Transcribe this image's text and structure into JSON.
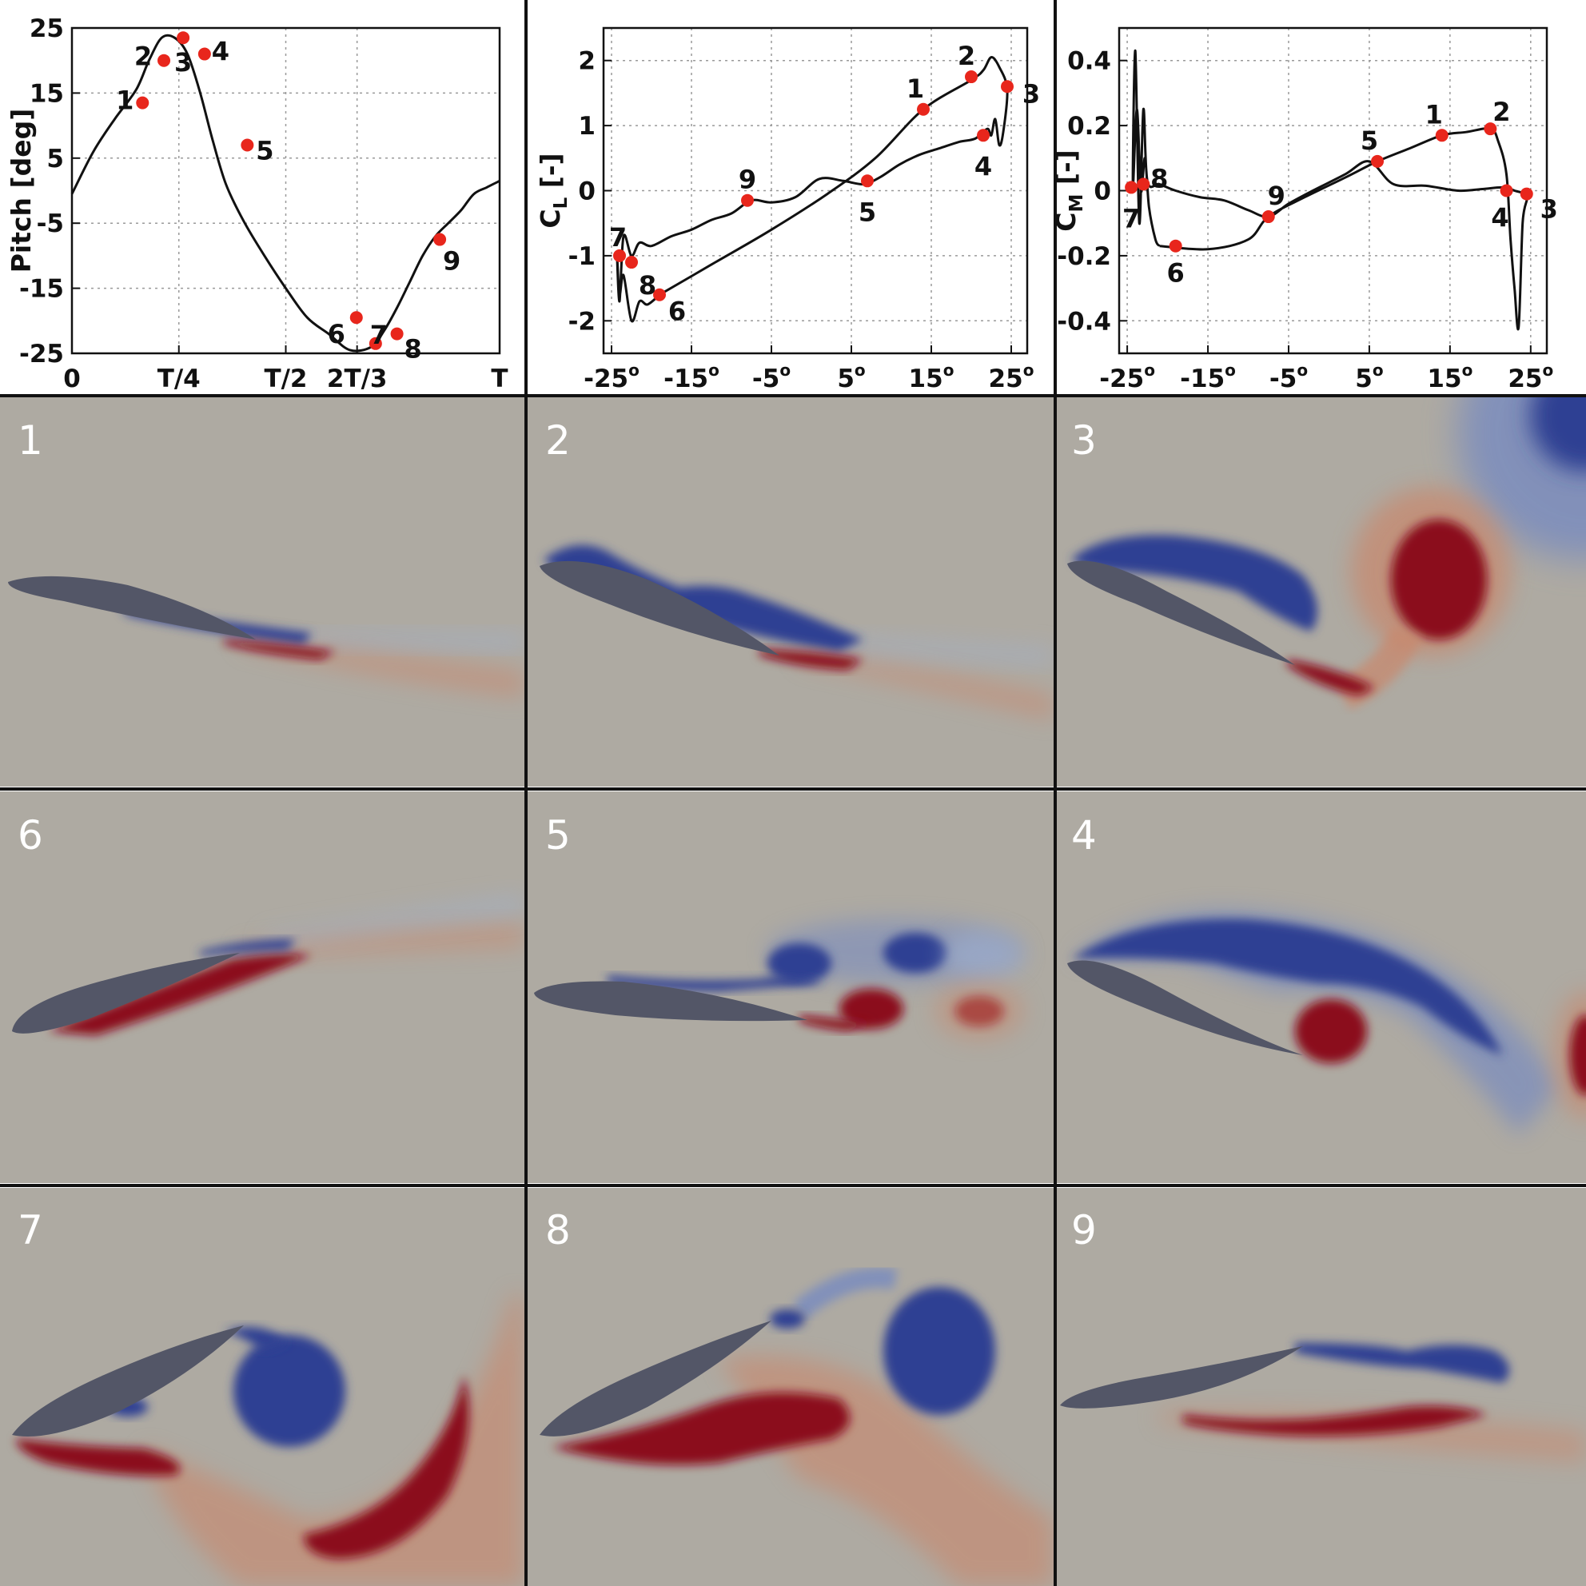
{
  "chart_data": [
    {
      "type": "line",
      "id": "pitch",
      "title": "",
      "xlabel": "",
      "ylabel": "Pitch [deg]",
      "xlim": [
        0,
        1
      ],
      "ylim": [
        -25,
        25
      ],
      "x_ticks": [
        {
          "value": 0,
          "label": "0"
        },
        {
          "value": 0.25,
          "label": "T/4"
        },
        {
          "value": 0.5,
          "label": "T/2"
        },
        {
          "value": 0.6667,
          "label": "2T/3"
        },
        {
          "value": 1,
          "label": "T"
        }
      ],
      "y_ticks": [
        {
          "value": 25,
          "label": "25"
        },
        {
          "value": 15,
          "label": "15"
        },
        {
          "value": 5,
          "label": "5"
        },
        {
          "value": -5,
          "label": "-5"
        },
        {
          "value": -15,
          "label": "-15"
        },
        {
          "value": -25,
          "label": "-25"
        }
      ],
      "grid": true,
      "series": [
        {
          "name": "pitch",
          "x": [
            0,
            0.05,
            0.1,
            0.15,
            0.18,
            0.21,
            0.24,
            0.27,
            0.3,
            0.33,
            0.36,
            0.4,
            0.45,
            0.5,
            0.55,
            0.6,
            0.65,
            0.7,
            0.73,
            0.76,
            0.79,
            0.82,
            0.85,
            0.88,
            0.91,
            0.94,
            0.97,
            1.0
          ],
          "y": [
            -0.5,
            6,
            11,
            15.5,
            20,
            23.5,
            23.5,
            21,
            15,
            7.5,
            1,
            -4.5,
            -10,
            -15,
            -19.5,
            -22,
            -24.5,
            -24,
            -21.5,
            -18,
            -14,
            -10,
            -7,
            -5,
            -3,
            -0.5,
            0.5,
            1.5
          ]
        }
      ],
      "markers": [
        {
          "label": "1",
          "x": 0.165,
          "y": 13.5
        },
        {
          "label": "2",
          "x": 0.215,
          "y": 20
        },
        {
          "label": "3",
          "x": 0.26,
          "y": 23.5
        },
        {
          "label": "4",
          "x": 0.31,
          "y": 21
        },
        {
          "label": "5",
          "x": 0.41,
          "y": 7
        },
        {
          "label": "6",
          "x": 0.665,
          "y": -19.5
        },
        {
          "label": "7",
          "x": 0.71,
          "y": -23.5
        },
        {
          "label": "8",
          "x": 0.76,
          "y": -22
        },
        {
          "label": "9",
          "x": 0.86,
          "y": -7.5
        }
      ]
    },
    {
      "type": "line",
      "id": "lift",
      "title": "",
      "xlabel": "",
      "ylabel": "CL [-]",
      "xlim": [
        -26,
        27
      ],
      "ylim": [
        -2.5,
        2.5
      ],
      "x_ticks": [
        {
          "value": -25,
          "label": "-25o"
        },
        {
          "value": -15,
          "label": "-15o"
        },
        {
          "value": -5,
          "label": "-5o"
        },
        {
          "value": 5,
          "label": "5o"
        },
        {
          "value": 15,
          "label": "15o"
        },
        {
          "value": 25,
          "label": "25o"
        }
      ],
      "y_ticks": [
        {
          "value": 2,
          "label": "2"
        },
        {
          "value": 1,
          "label": "1"
        },
        {
          "value": 0,
          "label": "0"
        },
        {
          "value": -1,
          "label": "-1"
        },
        {
          "value": -2,
          "label": "-2"
        }
      ],
      "grid": true,
      "series": [
        {
          "name": "CL",
          "x": [
            -19,
            -12,
            -5,
            2,
            8,
            14,
            20,
            21.5,
            22.5,
            23.5,
            24.5,
            24,
            23.5,
            23,
            22.5,
            22,
            20.5,
            18.5,
            16,
            13.5,
            11,
            8.5,
            6.5,
            4,
            1,
            -2,
            -5,
            -7.5,
            -10,
            -12.5,
            -15,
            -17.5,
            -20,
            -21.5,
            -22.5,
            -23.5,
            -24,
            -24.3,
            -24,
            -23.5,
            -22.5,
            -21.5,
            -20.5,
            -19
          ],
          "y": [
            -1.6,
            -1.1,
            -0.6,
            -0.05,
            0.5,
            1.25,
            1.7,
            1.85,
            2.05,
            1.9,
            1.55,
            0.9,
            0.7,
            1.1,
            0.85,
            0.95,
            0.8,
            0.75,
            0.65,
            0.55,
            0.4,
            0.2,
            0.1,
            0.15,
            0.18,
            -0.1,
            -0.18,
            -0.15,
            -0.35,
            -0.45,
            -0.6,
            -0.7,
            -0.85,
            -0.8,
            -1.0,
            -0.7,
            -1.7,
            -1.0,
            -1.6,
            -1.3,
            -2.0,
            -1.7,
            -1.75,
            -1.6
          ]
        }
      ],
      "markers": [
        {
          "label": "1",
          "x": 14,
          "y": 1.25
        },
        {
          "label": "2",
          "x": 20,
          "y": 1.75
        },
        {
          "label": "3",
          "x": 24.5,
          "y": 1.6
        },
        {
          "label": "4",
          "x": 21.5,
          "y": 0.85
        },
        {
          "label": "5",
          "x": 7,
          "y": 0.15
        },
        {
          "label": "6",
          "x": -19,
          "y": -1.6
        },
        {
          "label": "7",
          "x": -24,
          "y": -1.0
        },
        {
          "label": "8",
          "x": -22.5,
          "y": -1.1
        },
        {
          "label": "9",
          "x": -8,
          "y": -0.15
        }
      ]
    },
    {
      "type": "line",
      "id": "moment",
      "title": "",
      "xlabel": "",
      "ylabel": "CM [-]",
      "xlim": [
        -26,
        27
      ],
      "ylim": [
        -0.5,
        0.5
      ],
      "x_ticks": [
        {
          "value": -25,
          "label": "-25o"
        },
        {
          "value": -15,
          "label": "-15o"
        },
        {
          "value": -5,
          "label": "-5o"
        },
        {
          "value": 5,
          "label": "5o"
        },
        {
          "value": 15,
          "label": "15o"
        },
        {
          "value": 25,
          "label": "25o"
        }
      ],
      "y_ticks": [
        {
          "value": 0.4,
          "label": "0.4"
        },
        {
          "value": 0.2,
          "label": "0.2"
        },
        {
          "value": 0,
          "label": "0"
        },
        {
          "value": -0.2,
          "label": "-0.2"
        },
        {
          "value": -0.4,
          "label": "-0.4"
        }
      ],
      "grid": true,
      "series": [
        {
          "name": "CM",
          "x": [
            -21,
            -15,
            -10,
            -7.5,
            -3,
            2,
            6,
            10,
            14,
            17,
            20,
            21,
            22,
            22.5,
            23,
            23.5,
            24,
            24.5,
            23,
            21.5,
            19,
            16,
            12,
            8,
            5,
            2,
            -2,
            -5,
            -7.5,
            -10,
            -13,
            -16,
            -19,
            -21,
            -22.5,
            -23,
            -23.5,
            -24,
            -24.3,
            -23.8,
            -23.3,
            -22.8,
            -22.3,
            -21.5,
            -21
          ],
          "y": [
            -0.17,
            -0.18,
            -0.15,
            -0.08,
            -0.02,
            0.04,
            0.09,
            0.13,
            0.17,
            0.18,
            0.19,
            0.15,
            0.05,
            -0.15,
            -0.3,
            -0.42,
            -0.1,
            -0.02,
            0.0,
            0.01,
            0.005,
            0.0,
            0.015,
            0.02,
            0.09,
            0.05,
            0.0,
            -0.04,
            -0.08,
            -0.06,
            -0.03,
            -0.02,
            0.0,
            0.02,
            0.03,
            0.25,
            -0.1,
            0.43,
            0.01,
            0.25,
            0.0,
            0.1,
            -0.05,
            -0.15,
            -0.17
          ]
        }
      ],
      "markers": [
        {
          "label": "1",
          "x": 14,
          "y": 0.17
        },
        {
          "label": "2",
          "x": 20,
          "y": 0.19
        },
        {
          "label": "3",
          "x": 24.5,
          "y": -0.01
        },
        {
          "label": "4",
          "x": 22,
          "y": 0.0
        },
        {
          "label": "5",
          "x": 6,
          "y": 0.09
        },
        {
          "label": "6",
          "x": -19,
          "y": -0.17
        },
        {
          "label": "7",
          "x": -24.5,
          "y": 0.01
        },
        {
          "label": "8",
          "x": -23,
          "y": 0.02
        },
        {
          "label": "9",
          "x": -7.5,
          "y": -0.08
        }
      ]
    }
  ],
  "snapshots": {
    "labels": [
      "1",
      "2",
      "3",
      "6",
      "5",
      "4",
      "7",
      "8",
      "9"
    ]
  },
  "colors": {
    "marker": "#e8261c",
    "curve": "#111111",
    "grid": "#9a9a9a",
    "background_field": "#aeaaa2",
    "vortex_blue": "#2f3f93",
    "vortex_red": "#8b0a1e",
    "airfoil": "#535667",
    "divider": "#111111"
  }
}
